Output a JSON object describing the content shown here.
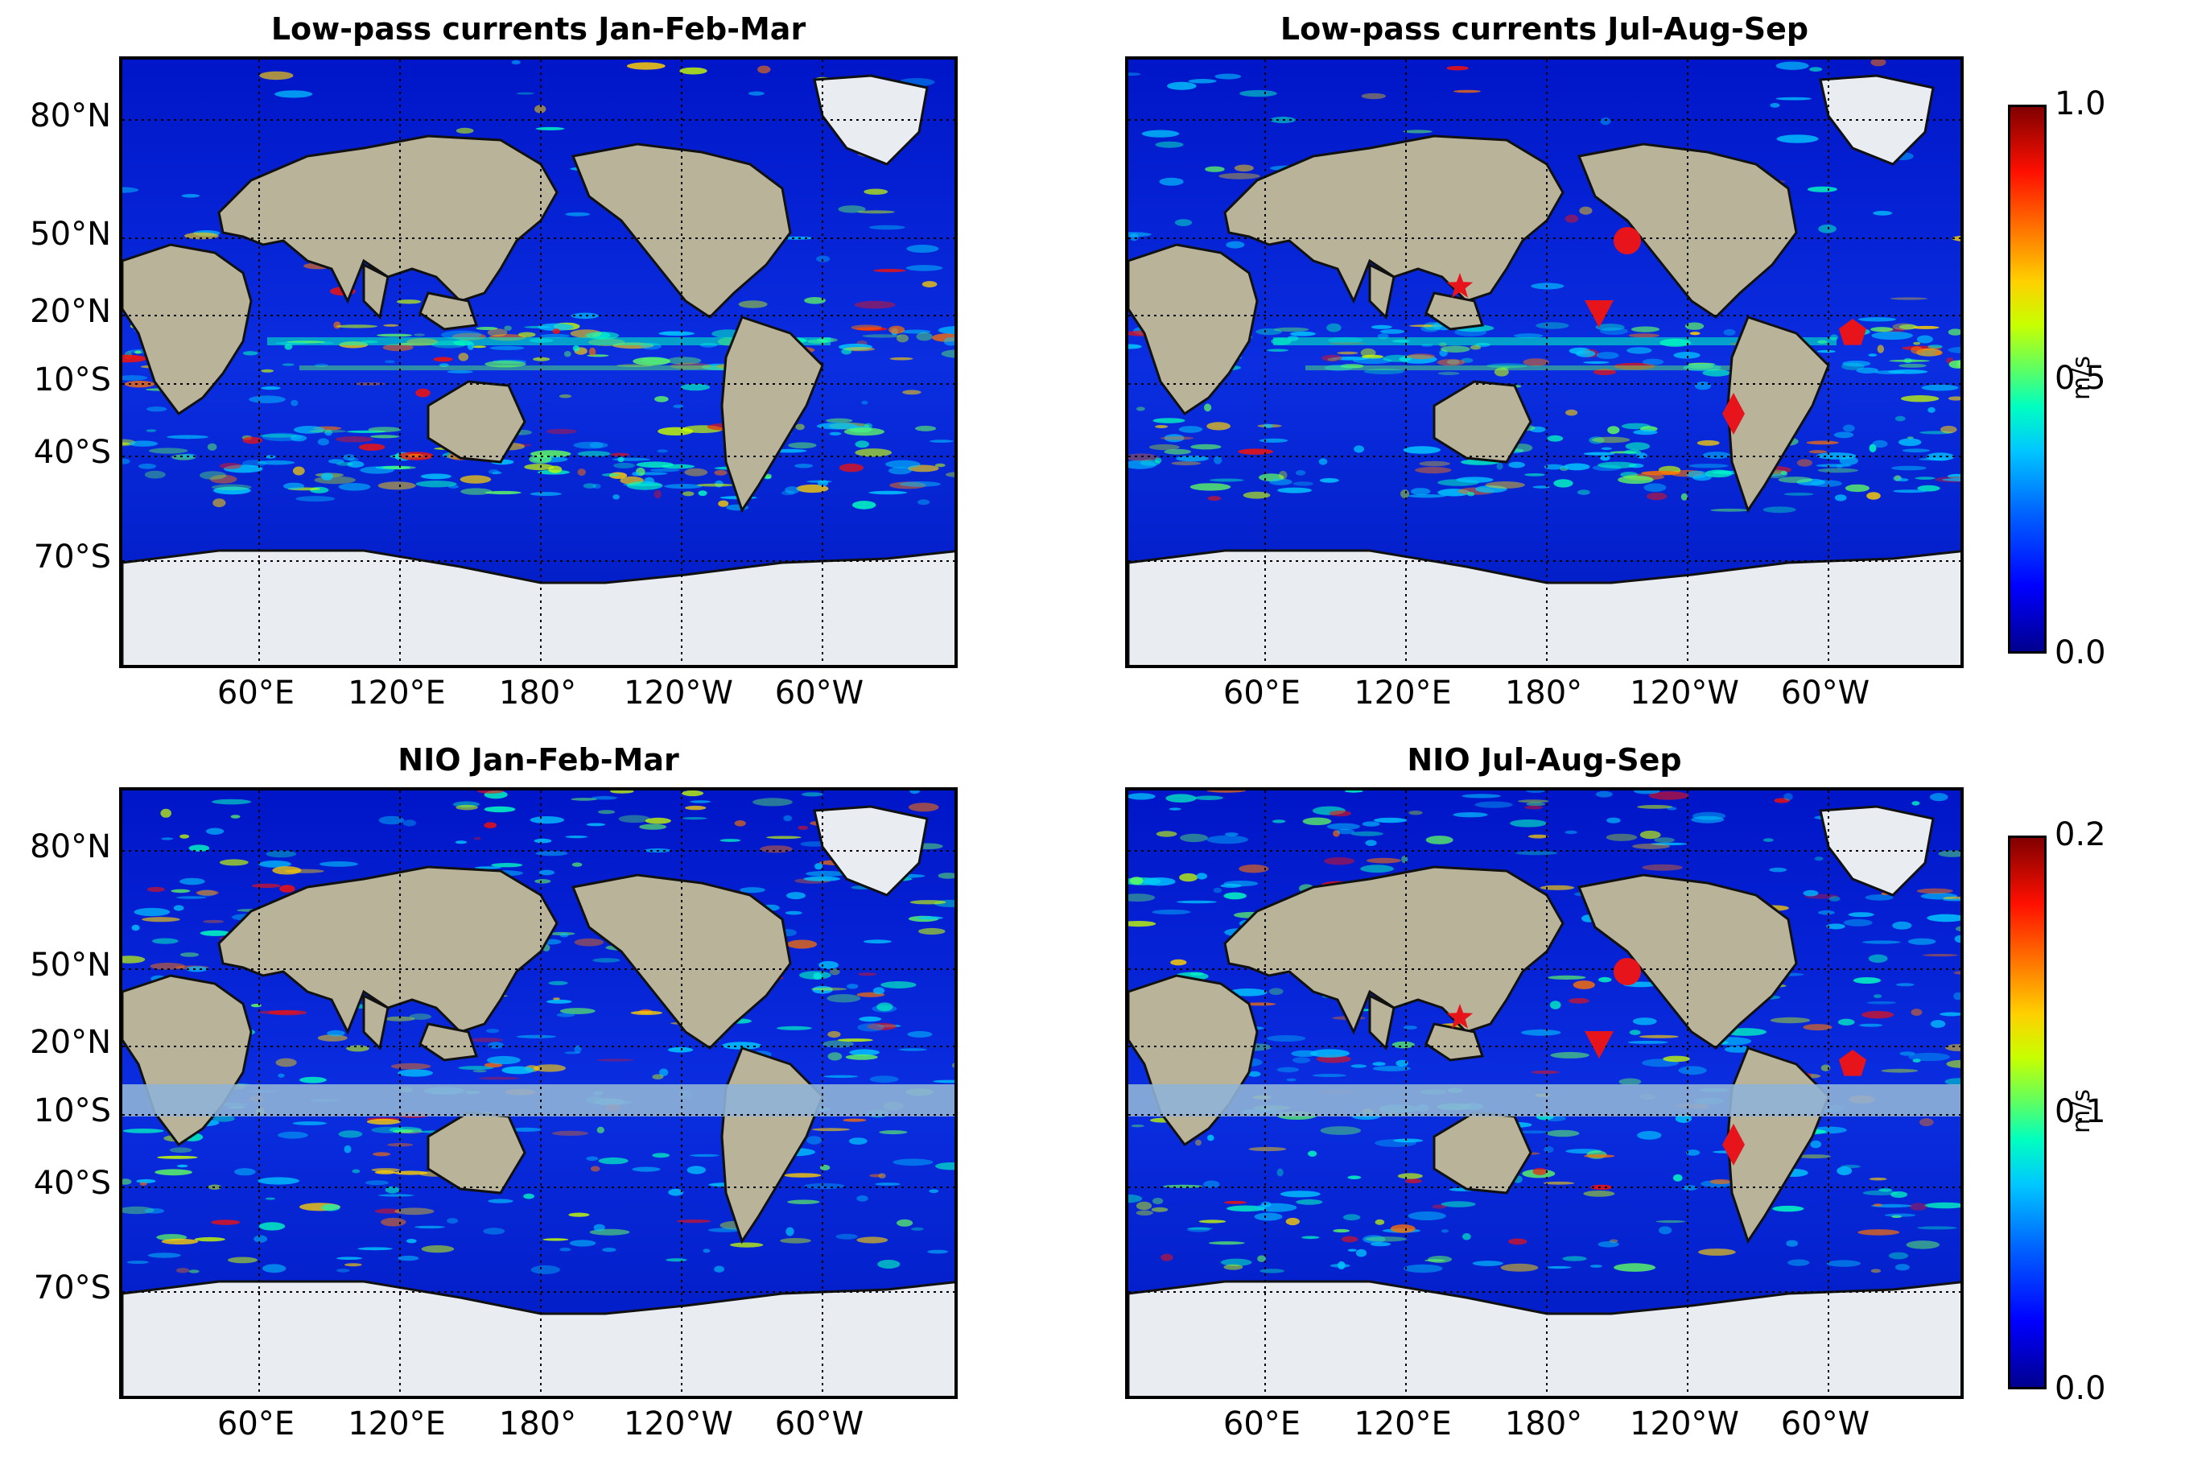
{
  "panels": [
    {
      "title": "Low-pass currents Jan-Feb-Mar",
      "markers": false,
      "nio_mask": false,
      "lat_labels": [
        "80°N",
        "50°N",
        "20°N",
        "10°S",
        "40°S",
        "70°S"
      ],
      "lon_labels": [
        "60°E",
        "120°E",
        "180°",
        "120°W",
        "60°W"
      ]
    },
    {
      "title": "Low-pass currents Jul-Aug-Sep",
      "markers": true,
      "nio_mask": false,
      "lat_labels": [],
      "lon_labels": [
        "60°E",
        "120°E",
        "180°",
        "120°W",
        "60°W"
      ]
    },
    {
      "title": "NIO Jan-Feb-Mar",
      "markers": false,
      "nio_mask": true,
      "lat_labels": [
        "80°N",
        "50°N",
        "20°N",
        "10°S",
        "40°S",
        "70°S"
      ],
      "lon_labels": [
        "60°E",
        "120°E",
        "180°",
        "120°W",
        "60°W"
      ]
    },
    {
      "title": "NIO Jul-Aug-Sep",
      "markers": true,
      "nio_mask": true,
      "lat_labels": [],
      "lon_labels": [
        "60°E",
        "120°E",
        "180°",
        "120°W",
        "60°W"
      ]
    }
  ],
  "colorbars": [
    {
      "ticks": [
        "1.0",
        "0.5",
        "0.0"
      ],
      "unit": "m/s"
    },
    {
      "ticks": [
        "0.2",
        "0.1",
        "0.0"
      ],
      "unit": "m/s"
    }
  ],
  "markers": [
    {
      "shape": "star",
      "label": "station-star"
    },
    {
      "shape": "triangle-down",
      "label": "station-triangle"
    },
    {
      "shape": "circle",
      "label": "station-circle"
    },
    {
      "shape": "pentagon",
      "label": "station-pentagon"
    },
    {
      "shape": "diamond",
      "label": "station-diamond"
    }
  ],
  "colors": {
    "ocean_low": "#0a1fd6",
    "land": "#b9b39a",
    "ice": "#e9edf2",
    "marker": "#e8141c",
    "mask_band": "#8fb3d6"
  }
}
